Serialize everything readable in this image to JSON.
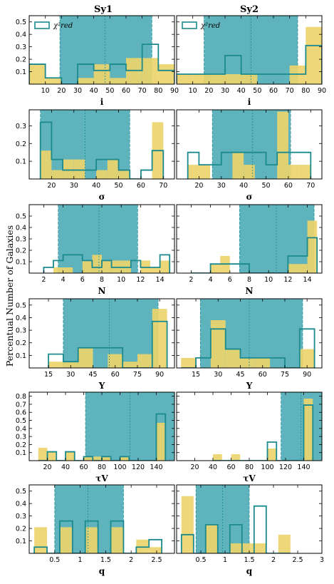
{
  "colors": {
    "band": "#5fb3bc",
    "bar": "#ecd46c",
    "line": "#1a8a8e"
  },
  "titles": {
    "left": "Sy1",
    "right": "Sy2"
  },
  "ylabel": "Percentual Number of Galaxies",
  "legend_label": "χ²red",
  "chart_data": [
    {
      "type": "bar",
      "name": "Sy1-i",
      "xlabel": "i",
      "xlim": [
        0,
        90
      ],
      "ylim": [
        0,
        0.55
      ],
      "xticks": [
        10,
        20,
        30,
        40,
        50,
        60,
        70,
        80,
        90
      ],
      "yticks": [
        0.1,
        0.2,
        0.3,
        0.4,
        0.5
      ],
      "band": [
        19,
        76
      ],
      "mean": 47,
      "legend": true,
      "edges": [
        0,
        10,
        20,
        30,
        40,
        50,
        60,
        70,
        80,
        90
      ],
      "bars": [
        0.16,
        0.05,
        0,
        0.05,
        0.16,
        0.05,
        0.21,
        0.21,
        0.16
      ],
      "steps": [
        0.16,
        0.05,
        0,
        0.16,
        0.11,
        0.16,
        0.11,
        0.32,
        0.11
      ]
    },
    {
      "type": "bar",
      "name": "Sy2-i",
      "xlim": [
        0,
        90
      ],
      "ylim": [
        0,
        0.55
      ],
      "xlabel": "i",
      "xticks": [
        10,
        20,
        30,
        40,
        50,
        60,
        70,
        80,
        90
      ],
      "yticks": [
        0.1,
        0.2,
        0.3,
        0.4,
        0.5
      ],
      "band": [
        17,
        75
      ],
      "mean": 46,
      "legend": true,
      "edges": [
        0,
        10,
        20,
        30,
        40,
        50,
        60,
        70,
        80,
        90
      ],
      "bars": [
        0.08,
        0.08,
        0.08,
        0.08,
        0.08,
        0,
        0,
        0.15,
        0.46
      ],
      "steps": [
        0.08,
        0.08,
        0.08,
        0.23,
        0.08,
        0.08,
        0.08,
        0.08,
        0.31
      ]
    },
    {
      "type": "bar",
      "name": "Sy1-sigma",
      "xlim": [
        10,
        75
      ],
      "ylim": [
        0,
        0.39
      ],
      "xlabel": "σ",
      "xticks": [
        20,
        30,
        40,
        50,
        60,
        70
      ],
      "yticks": [
        0.1,
        0.2,
        0.3
      ],
      "band": [
        15,
        55
      ],
      "mean": 35,
      "legend": false,
      "edges": [
        15,
        20,
        25,
        30,
        35,
        40,
        45,
        50,
        55,
        60,
        65,
        70
      ],
      "bars": [
        0.16,
        0.05,
        0.11,
        0.11,
        0,
        0.05,
        0.11,
        0.05,
        0,
        0,
        0.32
      ],
      "steps": [
        0.32,
        0.11,
        0.05,
        0.05,
        0.05,
        0.11,
        0.11,
        0.05,
        0,
        0.05,
        0.16
      ]
    },
    {
      "type": "bar",
      "name": "Sy2-sigma",
      "xlim": [
        10,
        75
      ],
      "ylim": [
        0,
        0.39
      ],
      "xlabel": "σ",
      "xticks": [
        20,
        30,
        40,
        50,
        60,
        70
      ],
      "yticks": [
        0.1,
        0.2,
        0.3
      ],
      "band": [
        26,
        61
      ],
      "mean": 44,
      "legend": false,
      "edges": [
        15,
        20,
        25,
        30,
        35,
        40,
        45,
        50,
        55,
        60,
        65,
        70
      ],
      "bars": [
        0.08,
        0.08,
        0,
        0,
        0.15,
        0.08,
        0,
        0,
        0.38,
        0.08,
        0.08
      ],
      "steps": [
        0.15,
        0.08,
        0.08,
        0.15,
        0.15,
        0.15,
        0.15,
        0.08,
        0.15,
        0.15,
        0.15
      ]
    },
    {
      "type": "bar",
      "name": "Sy1-N",
      "xlim": [
        0.5,
        15.5
      ],
      "ylim": [
        0,
        0.6
      ],
      "xlabel": "N",
      "xticks": [
        2,
        4,
        6,
        8,
        10,
        12,
        14
      ],
      "yticks": [
        0.1,
        0.2,
        0.3,
        0.4,
        0.5
      ],
      "band": [
        3.5,
        11.7
      ],
      "mean": 7.7,
      "legend": false,
      "edges": [
        2,
        3,
        4,
        5,
        6,
        7,
        8,
        9,
        10,
        11,
        12,
        13,
        14,
        15
      ],
      "bars": [
        0,
        0.05,
        0.05,
        0,
        0.11,
        0.16,
        0.11,
        0.11,
        0.11,
        0,
        0.11,
        0.05,
        0.11
      ],
      "steps": [
        0.05,
        0.11,
        0.16,
        0.16,
        0.11,
        0.05,
        0.11,
        0.05,
        0.05,
        0.11,
        0.05,
        0.05,
        0.16
      ]
    },
    {
      "type": "bar",
      "name": "Sy2-N",
      "xlim": [
        0.5,
        15.5
      ],
      "ylim": [
        0,
        0.6
      ],
      "xlabel": "N",
      "xticks": [
        2,
        4,
        6,
        8,
        10,
        12,
        14
      ],
      "yticks": [
        0.1,
        0.2,
        0.3,
        0.4,
        0.5
      ],
      "band": [
        7,
        14.7
      ],
      "mean": 10.8,
      "legend": false,
      "edges": [
        2,
        3,
        4,
        5,
        6,
        7,
        8,
        9,
        10,
        11,
        12,
        13,
        14,
        15
      ],
      "bars": [
        0,
        0,
        0.08,
        0.15,
        0,
        0,
        0,
        0,
        0,
        0,
        0.08,
        0.08,
        0.46
      ],
      "steps": [
        0,
        0,
        0.08,
        0.08,
        0.08,
        0.08,
        0,
        0,
        0,
        0,
        0.15,
        0.15,
        0.31
      ]
    },
    {
      "type": "bar",
      "name": "Sy1-Y",
      "xlim": [
        2,
        100
      ],
      "ylim": [
        0,
        0.55
      ],
      "xlabel": "Y",
      "xticks": [
        15,
        30,
        45,
        60,
        75,
        90
      ],
      "yticks": [
        0.1,
        0.2,
        0.3,
        0.4,
        0.5
      ],
      "band": [
        25,
        89
      ],
      "mean": 56,
      "legend": false,
      "edges": [
        15,
        25,
        35,
        45,
        55,
        65,
        75,
        85,
        95
      ],
      "bars": [
        0.05,
        0.05,
        0.16,
        0,
        0.11,
        0.05,
        0.11,
        0.47
      ],
      "steps": [
        0.11,
        0.05,
        0.16,
        0.16,
        0.16,
        0,
        0,
        0.37
      ]
    },
    {
      "type": "bar",
      "name": "Sy2-Y",
      "xlim": [
        2,
        100
      ],
      "ylim": [
        0,
        0.55
      ],
      "xlabel": "Y",
      "xticks": [
        15,
        30,
        45,
        60,
        75,
        90
      ],
      "yticks": [
        0.1,
        0.2,
        0.3,
        0.4,
        0.5
      ],
      "band": [
        18,
        87
      ],
      "mean": 51,
      "legend": false,
      "edges": [
        5,
        15,
        25,
        35,
        45,
        55,
        65,
        75,
        85,
        95
      ],
      "bars": [
        0.08,
        0,
        0.38,
        0.15,
        0.08,
        0.08,
        0,
        0,
        0.15
      ],
      "steps": [
        0,
        0.08,
        0.31,
        0.15,
        0.08,
        0.08,
        0.08,
        0,
        0.31
      ]
    },
    {
      "type": "bar",
      "name": "Sy1-tauV",
      "xlim": [
        0,
        160
      ],
      "ylim": [
        0,
        0.85
      ],
      "xlabel": "τV",
      "xticks": [
        20,
        40,
        60,
        80,
        100,
        120,
        140
      ],
      "yticks": [
        0.1,
        0.2,
        0.3,
        0.4,
        0.5,
        0.6,
        0.7,
        0.8
      ],
      "band": [
        62,
        160
      ],
      "mean": 111,
      "legend": false,
      "edges": [
        10,
        20,
        30,
        40,
        50,
        60,
        70,
        80,
        90,
        100,
        110,
        120,
        130,
        140,
        150
      ],
      "bars": [
        0.16,
        0.11,
        0,
        0.11,
        0,
        0.05,
        0.05,
        0.05,
        0,
        0.05,
        0,
        0,
        0,
        0.47
      ],
      "steps": [
        0,
        0.11,
        0,
        0.11,
        0,
        0.05,
        0,
        0.05,
        0,
        0.05,
        0,
        0,
        0,
        0.58
      ]
    },
    {
      "type": "bar",
      "name": "Sy2-tauV",
      "xlim": [
        0,
        160
      ],
      "ylim": [
        0,
        0.85
      ],
      "xlabel": "τV",
      "xticks": [
        20,
        40,
        60,
        80,
        100,
        120,
        140
      ],
      "yticks": [
        0.1,
        0.2,
        0.3,
        0.4,
        0.5,
        0.6,
        0.7,
        0.8
      ],
      "band": [
        115,
        160
      ],
      "mean": 137,
      "legend": false,
      "edges": [
        40,
        50,
        60,
        70,
        80,
        90,
        100,
        110,
        120,
        130,
        140,
        150
      ],
      "bars": [
        0.08,
        0,
        0.08,
        0,
        0,
        0,
        0.15,
        0,
        0,
        0,
        0.77
      ],
      "steps": [
        0,
        0,
        0,
        0,
        0,
        0,
        0.23,
        0,
        0,
        0,
        0.69
      ]
    },
    {
      "type": "bar",
      "name": "Sy1-q",
      "xlim": [
        0,
        2.85
      ],
      "ylim": [
        0,
        0.55
      ],
      "xlabel": "q",
      "xticks": [
        0.5,
        1.0,
        1.5,
        2.0,
        2.5
      ],
      "yticks": [
        0.1,
        0.2,
        0.3,
        0.4,
        0.5
      ],
      "band": [
        0.5,
        1.85
      ],
      "mean": 1.15,
      "legend": false,
      "edges": [
        0.1,
        0.35,
        0.6,
        0.85,
        1.1,
        1.35,
        1.6,
        1.85,
        2.1,
        2.35,
        2.6
      ],
      "bars": [
        0.21,
        0,
        0.21,
        0,
        0.21,
        0,
        0.21,
        0,
        0.11,
        0.05
      ],
      "steps": [
        0.05,
        0,
        0.26,
        0,
        0.26,
        0,
        0.26,
        0,
        0.05,
        0.11
      ]
    },
    {
      "type": "bar",
      "name": "Sy2-q",
      "xlim": [
        0,
        3.0
      ],
      "ylim": [
        0,
        0.55
      ],
      "xlabel": "q",
      "xticks": [
        0.5,
        1.0,
        1.5,
        2.0,
        2.5,
        3.0
      ],
      "yticks": [
        0.1,
        0.2,
        0.3,
        0.4,
        0.5
      ],
      "band": [
        0.4,
        1.5
      ],
      "mean": 0.95,
      "legend": false,
      "edges": [
        0.1,
        0.35,
        0.6,
        0.85,
        1.1,
        1.35,
        1.6,
        1.85,
        2.1,
        2.35
      ],
      "bars": [
        0.46,
        0,
        0.23,
        0,
        0.08,
        0.08,
        0.08,
        0,
        0.15
      ],
      "steps": [
        0.15,
        0,
        0.23,
        0,
        0.23,
        0,
        0.38,
        0,
        0
      ]
    }
  ]
}
